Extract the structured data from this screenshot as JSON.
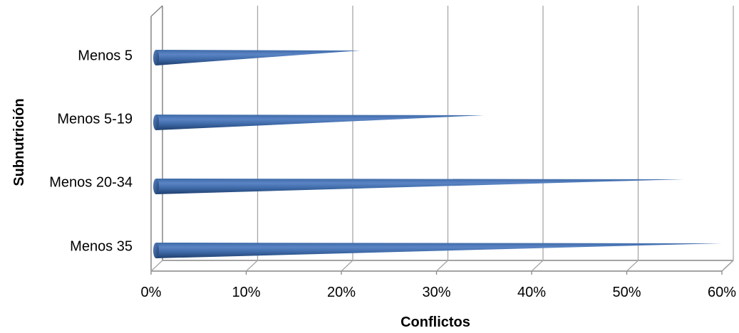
{
  "chart_data": {
    "type": "bar",
    "orientation": "horizontal",
    "style": "3d-cone",
    "categories": [
      "Menos 5",
      "Menos 5-19",
      "Menos 20-34",
      "Menos 35"
    ],
    "values": [
      22,
      35,
      56,
      60
    ],
    "value_unit": "%",
    "xlabel": "Conflictos",
    "ylabel": "Subnutrición",
    "xlim": [
      0,
      60
    ],
    "xticks": [
      "0%",
      "10%",
      "20%",
      "30%",
      "40%",
      "50%",
      "60%"
    ],
    "grid": true,
    "legend": "none",
    "colors": {
      "bar_light": "#5b84c4",
      "bar_mid": "#3e6aa8",
      "bar_dark": "#1f3f6e",
      "grid": "#a6a6a6",
      "axis": "#868686"
    }
  }
}
